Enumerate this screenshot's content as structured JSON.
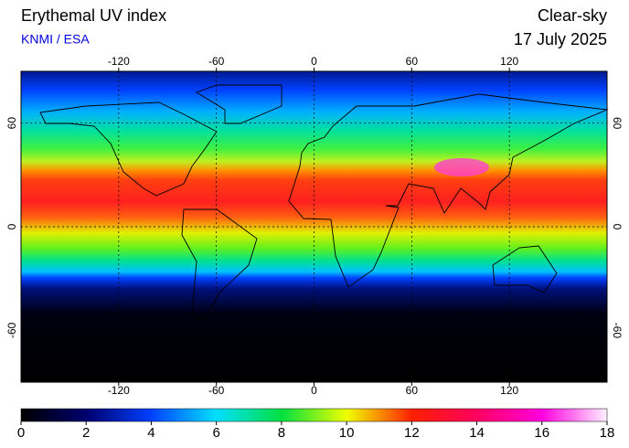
{
  "header": {
    "title": "Erythemal UV index",
    "source": "KNMI / ESA",
    "condition": "Clear-sky",
    "date": "17 July 2025"
  },
  "map": {
    "xlim": [
      -180,
      180
    ],
    "ylim": [
      -90,
      90
    ],
    "xticks": [
      -120,
      -60,
      0,
      60,
      120
    ],
    "yticks": [
      60,
      0,
      -60
    ],
    "grid": true
  },
  "colorbar": {
    "lim": [
      0,
      18
    ],
    "ticks": [
      0,
      2,
      4,
      6,
      8,
      10,
      12,
      14,
      16,
      18
    ],
    "colors": [
      "#000000",
      "#00006e",
      "#0040ff",
      "#00e0ff",
      "#00e040",
      "#f0ff00",
      "#ff2000",
      "#ff0060",
      "#ff00e0",
      "#fff0ff"
    ]
  }
}
